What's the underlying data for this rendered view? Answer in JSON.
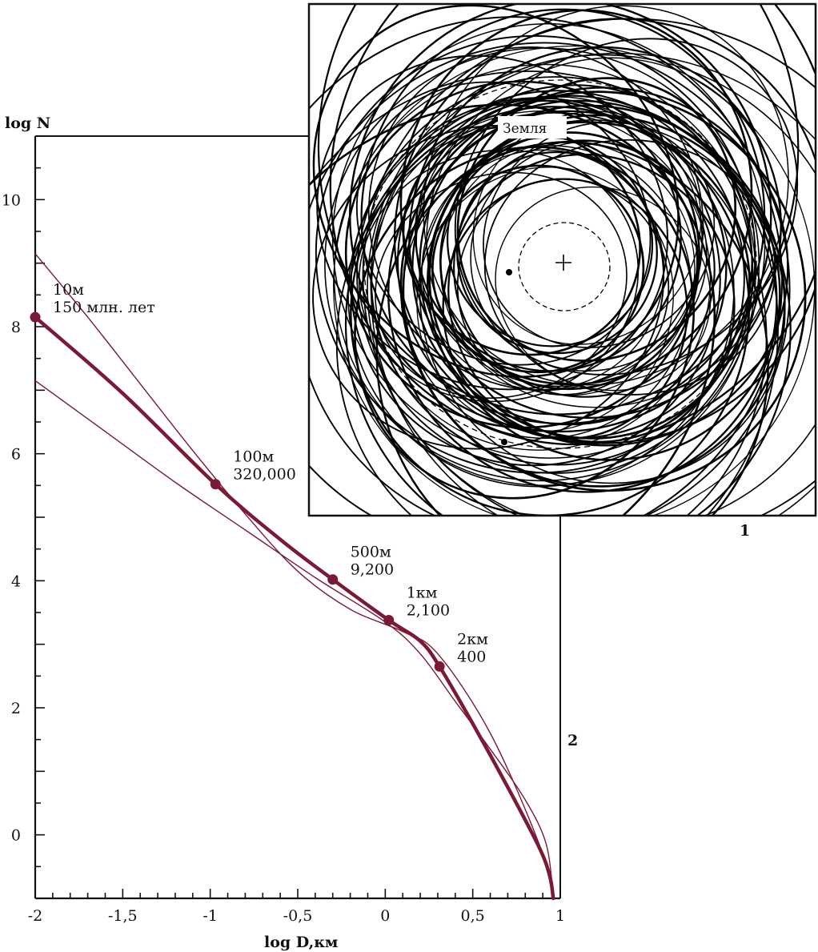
{
  "panels": {
    "orbit_panel_label": "1",
    "chart_panel_label": "2"
  },
  "orbit_diagram": {
    "earth_label": "Земля",
    "sun_marker": "+"
  },
  "colors": {
    "curve": "#7a1a35",
    "axis": "#111111",
    "orbit": "#000000"
  },
  "chart_data": {
    "type": "line",
    "xlabel": "log D,км",
    "ylabel": "log N",
    "xlim": [
      -2,
      1
    ],
    "ylim": [
      -1,
      11
    ],
    "xticks": [
      -2,
      -1.5,
      -1,
      -0.5,
      0,
      0.5,
      1
    ],
    "xtick_labels": [
      "-2",
      "-1,5",
      "-1",
      "-0,5",
      "0",
      "0,5",
      "1"
    ],
    "yticks": [
      0,
      2,
      4,
      6,
      8,
      10
    ],
    "ytick_labels": [
      "0",
      "2",
      "4",
      "6",
      "8",
      "10"
    ],
    "grid": false,
    "main_curve": {
      "x": [
        -2,
        -1.5,
        -0.97,
        -0.6,
        -0.3,
        0.02,
        0.2,
        0.31,
        0.5,
        0.7,
        0.88,
        0.94,
        0.96
      ],
      "y": [
        8.15,
        6.95,
        5.52,
        4.65,
        4.02,
        3.38,
        3.05,
        2.65,
        1.75,
        0.75,
        -0.2,
        -0.65,
        -1
      ]
    },
    "upper_curve": {
      "x": [
        -2,
        -1.7,
        -1.4,
        -1.1,
        -0.8,
        -0.5,
        -0.2,
        0.1,
        0.3,
        0.6,
        0.88,
        0.96
      ],
      "y": [
        9.15,
        8.15,
        7.1,
        6.05,
        5.05,
        4.15,
        3.55,
        3.2,
        2.85,
        1.6,
        -0.15,
        -1
      ]
    },
    "lower_curve": {
      "x": [
        -2,
        -1.6,
        -1.2,
        -0.8,
        -0.4,
        0,
        0.2,
        0.4,
        0.6,
        0.8,
        0.92,
        0.96
      ],
      "y": [
        7.15,
        6.35,
        5.55,
        4.8,
        4.05,
        3.35,
        2.85,
        2.1,
        1.35,
        0.55,
        -0.15,
        -1
      ]
    },
    "points": [
      {
        "x": -2,
        "y": 8.15,
        "label": [
          "10м",
          "150 млн. лет"
        ]
      },
      {
        "x": -0.97,
        "y": 5.52,
        "label": [
          "100м",
          "320,000"
        ]
      },
      {
        "x": -0.3,
        "y": 4.02,
        "label": [
          "500м",
          "9,200"
        ]
      },
      {
        "x": 0.02,
        "y": 3.38,
        "label": [
          "1км",
          "2,100"
        ]
      },
      {
        "x": 0.31,
        "y": 2.65,
        "label": [
          "2км",
          "400"
        ]
      }
    ]
  }
}
